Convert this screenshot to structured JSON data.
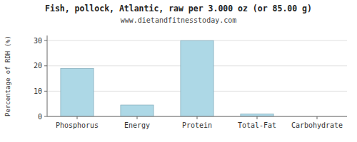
{
  "chart_data": {
    "type": "bar",
    "title": "Fish, pollock, Atlantic, raw per 3.000 oz (or 85.00 g)",
    "subtitle": "www.dietandfitnesstoday.com",
    "categories": [
      "Phosphorus",
      "Energy",
      "Protein",
      "Total-Fat",
      "Carbohydrate"
    ],
    "values": [
      19,
      4.5,
      30,
      1,
      0
    ],
    "color": "#add8e6",
    "ylabel": "Percentage of RDH (%)",
    "ylim": [
      0,
      32
    ],
    "yticks": [
      0,
      10,
      20,
      30
    ],
    "grid": true
  }
}
